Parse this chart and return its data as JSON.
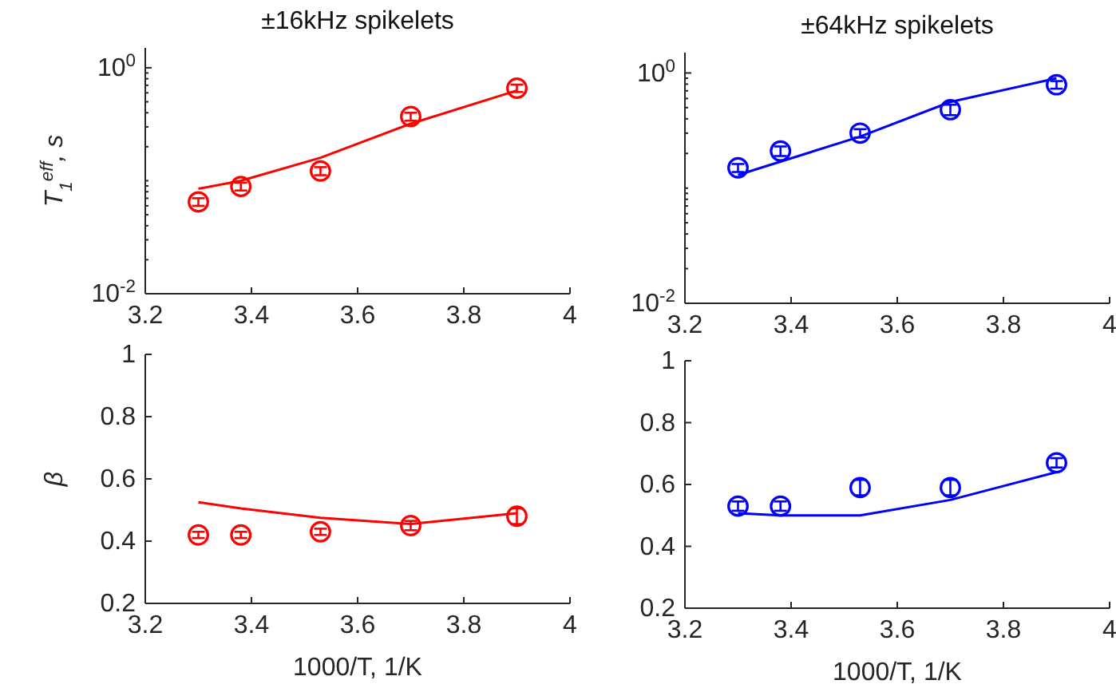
{
  "chart_data": [
    {
      "type": "scatter",
      "title": "±16kHz spikelets",
      "ylabel": "T$_{1}$$^{eff}$, s",
      "log": "y",
      "xlim": [
        3.2,
        4
      ],
      "xticks": [
        3.2,
        3.4,
        3.6,
        3.8,
        4
      ],
      "ylim": [
        0.01,
        1.5
      ],
      "yticks": [
        {
          "value": 0.01,
          "label": "10$^{-2}$"
        },
        {
          "value": 0.02,
          "label": null
        },
        {
          "value": 0.03,
          "label": null
        },
        {
          "value": 0.04,
          "label": null
        },
        {
          "value": 0.05,
          "label": null
        },
        {
          "value": 0.06,
          "label": null
        },
        {
          "value": 0.07,
          "label": null
        },
        {
          "value": 0.08,
          "label": null
        },
        {
          "value": 0.09,
          "label": null
        },
        {
          "value": 0.1,
          "label": null
        },
        {
          "value": 0.2,
          "label": null
        },
        {
          "value": 0.3,
          "label": null
        },
        {
          "value": 0.4,
          "label": null
        },
        {
          "value": 0.5,
          "label": null
        },
        {
          "value": 0.6,
          "label": null
        },
        {
          "value": 0.7,
          "label": null
        },
        {
          "value": 0.8,
          "label": null
        },
        {
          "value": 0.9,
          "label": null
        },
        {
          "value": 1,
          "label": "10$^{0}$"
        }
      ],
      "grid": false,
      "legend": false,
      "series": [
        {
          "marker": "circle",
          "color": "#ff0000",
          "x": [
            3.3,
            3.38,
            3.53,
            3.7,
            3.9
          ],
          "values": [
            0.065,
            0.089,
            0.122,
            0.37,
            0.66
          ],
          "errors": [
            0.005,
            0.007,
            0.01,
            0.03,
            0.05
          ]
        },
        {
          "type": "line",
          "color": "#ff0000",
          "x": [
            3.3,
            3.38,
            3.53,
            3.7,
            3.9
          ],
          "values": [
            0.085,
            0.1,
            0.16,
            0.32,
            0.63
          ]
        }
      ]
    },
    {
      "type": "scatter",
      "title": "±64kHz spikelets",
      "log": "y",
      "xlim": [
        3.2,
        4
      ],
      "xticks": [
        3.2,
        3.4,
        3.6,
        3.8,
        4
      ],
      "ylim": [
        0.01,
        1.5
      ],
      "yticks": [
        {
          "value": 0.01,
          "label": "10$^{-2}$"
        },
        {
          "value": 0.02,
          "label": null
        },
        {
          "value": 0.03,
          "label": null
        },
        {
          "value": 0.04,
          "label": null
        },
        {
          "value": 0.05,
          "label": null
        },
        {
          "value": 0.06,
          "label": null
        },
        {
          "value": 0.07,
          "label": null
        },
        {
          "value": 0.08,
          "label": null
        },
        {
          "value": 0.09,
          "label": null
        },
        {
          "value": 0.1,
          "label": null
        },
        {
          "value": 0.2,
          "label": null
        },
        {
          "value": 0.3,
          "label": null
        },
        {
          "value": 0.4,
          "label": null
        },
        {
          "value": 0.5,
          "label": null
        },
        {
          "value": 0.6,
          "label": null
        },
        {
          "value": 0.7,
          "label": null
        },
        {
          "value": 0.8,
          "label": null
        },
        {
          "value": 0.9,
          "label": null
        },
        {
          "value": 1,
          "label": "10$^{0}$"
        }
      ],
      "grid": false,
      "legend": false,
      "series": [
        {
          "marker": "circle",
          "color": "#0000ff",
          "x": [
            3.3,
            3.38,
            3.53,
            3.7,
            3.9
          ],
          "values": [
            0.15,
            0.21,
            0.3,
            0.48,
            0.79
          ],
          "errors": [
            0.012,
            0.02,
            0.025,
            0.05,
            0.06
          ]
        },
        {
          "type": "line",
          "color": "#0000ff",
          "x": [
            3.3,
            3.38,
            3.53,
            3.7,
            3.9
          ],
          "values": [
            0.13,
            0.17,
            0.28,
            0.56,
            0.9
          ]
        }
      ]
    },
    {
      "type": "scatter",
      "xlabel": "1000/T, 1/K",
      "ylabel": "β",
      "xlim": [
        3.2,
        4
      ],
      "xticks": [
        3.2,
        3.4,
        3.6,
        3.8,
        4
      ],
      "ylim": [
        0.2,
        1
      ],
      "yticks": [
        0.2,
        0.4,
        0.6,
        0.8,
        1
      ],
      "grid": false,
      "legend": false,
      "series": [
        {
          "marker": "circle",
          "color": "#ff0000",
          "x": [
            3.3,
            3.38,
            3.53,
            3.7,
            3.9
          ],
          "values": [
            0.42,
            0.42,
            0.43,
            0.45,
            0.48
          ],
          "errors": [
            0.01,
            0.01,
            0.01,
            0.015,
            0.025
          ]
        },
        {
          "type": "line",
          "color": "#ff0000",
          "x": [
            3.3,
            3.38,
            3.53,
            3.7,
            3.9
          ],
          "values": [
            0.525,
            0.505,
            0.475,
            0.455,
            0.49
          ]
        }
      ]
    },
    {
      "type": "scatter",
      "xlabel": "1000/T, 1/K",
      "xlim": [
        3.2,
        4
      ],
      "xticks": [
        3.2,
        3.4,
        3.6,
        3.8,
        4
      ],
      "ylim": [
        0.2,
        1
      ],
      "yticks": [
        0.2,
        0.4,
        0.6,
        0.8,
        1
      ],
      "grid": false,
      "legend": false,
      "series": [
        {
          "marker": "circle",
          "color": "#0000ff",
          "x": [
            3.3,
            3.38,
            3.53,
            3.7,
            3.9
          ],
          "values": [
            0.53,
            0.53,
            0.59,
            0.59,
            0.67
          ],
          "errors": [
            0.015,
            0.015,
            0.025,
            0.025,
            0.015
          ]
        },
        {
          "type": "line",
          "color": "#0000ff",
          "x": [
            3.3,
            3.38,
            3.53,
            3.7,
            3.9
          ],
          "values": [
            0.507,
            0.5,
            0.5,
            0.55,
            0.64
          ]
        }
      ]
    }
  ]
}
